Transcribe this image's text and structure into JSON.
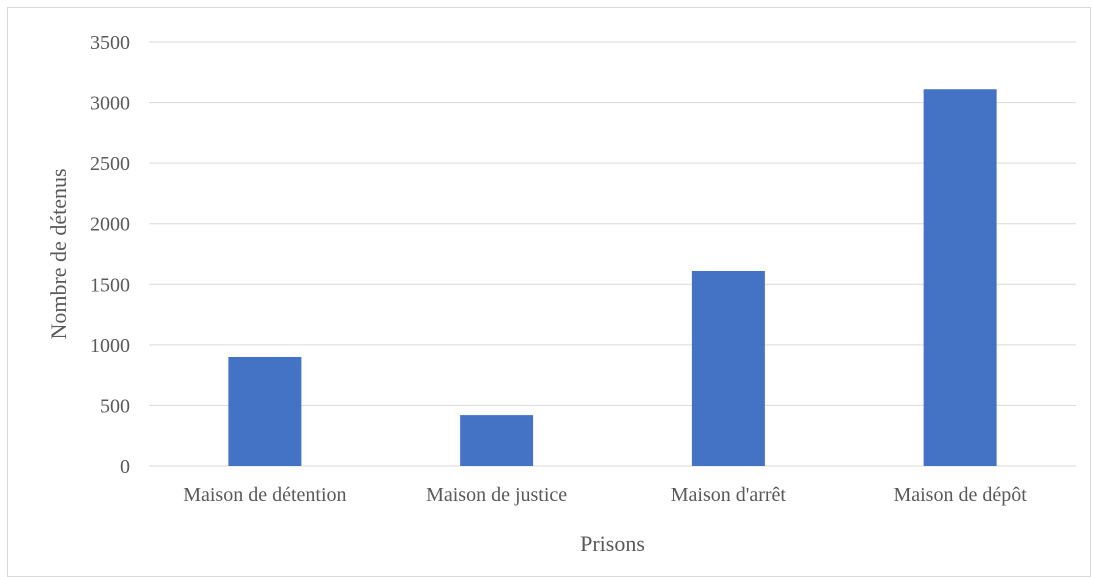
{
  "chart_data": {
    "type": "bar",
    "title": "",
    "xlabel": "Prisons",
    "ylabel": "Nombre de détenus",
    "categories": [
      "Maison de détention",
      "Maison de justice",
      "Maison d'arrêt",
      "Maison de dépôt"
    ],
    "values": [
      900,
      420,
      1610,
      3110
    ],
    "ylim": [
      0,
      3500
    ],
    "yticks": [
      0,
      500,
      1000,
      1500,
      2000,
      2500,
      3000,
      3500
    ],
    "grid": true,
    "legend": "none",
    "bar_color": "#4472C4",
    "grid_color": "#d9d9d9"
  }
}
